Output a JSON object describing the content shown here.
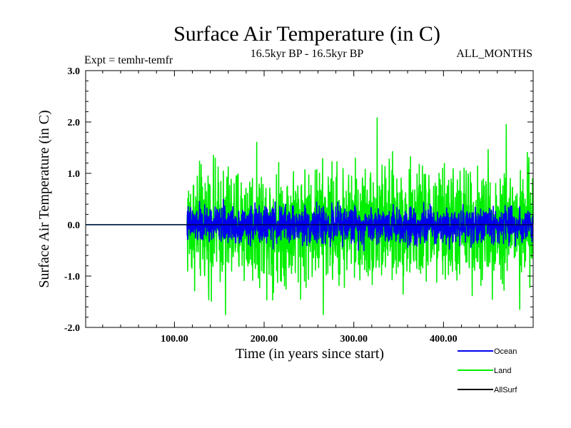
{
  "chart_data": {
    "type": "line",
    "title": "Surface Air Temperature (in C)",
    "subtitle": "16.5kyr BP - 16.5kyr BP",
    "experiment_label": "Expt = temhr-temfr",
    "period_label": "ALL_MONTHS",
    "xlabel": "Time (in years since start)",
    "ylabel": "Surface Air Temperature (in C)",
    "xlim": [
      1,
      500
    ],
    "ylim": [
      -2.0,
      3.0
    ],
    "x_ticks": [
      100,
      200,
      300,
      400
    ],
    "x_tick_labels": [
      "100.00",
      "200.00",
      "300.00",
      "400.00"
    ],
    "y_ticks": [
      -2.0,
      -1.0,
      0.0,
      1.0,
      2.0,
      3.0
    ],
    "y_tick_labels": [
      "-2.0",
      "-1.0",
      "0.0",
      "1.0",
      "2.0",
      "3.0"
    ],
    "flat_until": 114,
    "series": [
      {
        "name": "Land",
        "color": "#00ee00",
        "amplitude": 0.55,
        "spikes": [
          [
            326,
            2.08
          ],
          [
            470,
            1.95
          ],
          [
            266,
            -1.75
          ],
          [
            157,
            -1.75
          ],
          [
            485,
            -1.65
          ]
        ]
      },
      {
        "name": "Ocean",
        "color": "#0000ee",
        "amplitude": 0.18,
        "spikes": []
      },
      {
        "name": "AllSurf",
        "color": "#000000",
        "amplitude": 0.0,
        "spikes": []
      }
    ],
    "legend": {
      "position": "bottom-right",
      "entries": [
        "Ocean",
        "Land",
        "AllSurf"
      ]
    }
  }
}
